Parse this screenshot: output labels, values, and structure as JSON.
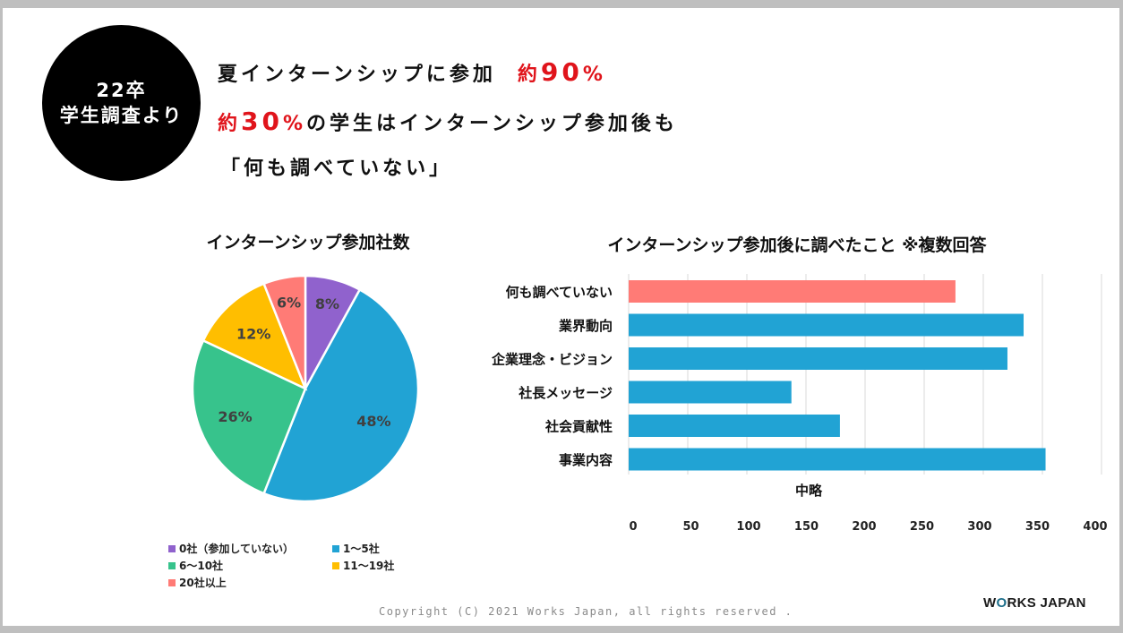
{
  "badge": {
    "line1": "22卒",
    "line2": "学生調査より"
  },
  "headline": {
    "line1_text": "夏インターンシップに参加",
    "line1_prefix": "約",
    "line1_value": "90",
    "line1_unit": "%",
    "line2_prefix": "約",
    "line2_value": "30",
    "line2_unit": "%",
    "line2_text": "の学生はインターンシップ参加後も",
    "line3_text": "「何も調べていない」"
  },
  "colors": {
    "accent_red": "#e0141b",
    "bar_blue": "#21a3d4",
    "bar_red": "#ff7b76"
  },
  "chart_data": [
    {
      "type": "pie",
      "title": "インターンシップ参加社数",
      "categories": [
        "0社（参加していない）",
        "1〜5社",
        "6〜10社",
        "11〜19社",
        "20社以上"
      ],
      "values": [
        8,
        48,
        26,
        12,
        6
      ],
      "labels": [
        "8%",
        "48%",
        "26%",
        "12%",
        "6%"
      ],
      "colors": [
        "#9062cd",
        "#21a3d4",
        "#37c38c",
        "#ffbe00",
        "#ff7b76"
      ],
      "legend_position": "bottom"
    },
    {
      "type": "bar",
      "orientation": "horizontal",
      "title": "インターンシップ参加後に調べたこと ※複数回答",
      "categories": [
        "何も調べていない",
        "業界動向",
        "企業理念・ビジョン",
        "社長メッセージ",
        "社会貢献性",
        "事業内容"
      ],
      "values": [
        279,
        338,
        324,
        137,
        179,
        357
      ],
      "colors": [
        "#ff7b76",
        "#21a3d4",
        "#21a3d4",
        "#21a3d4",
        "#21a3d4",
        "#21a3d4"
      ],
      "axis_break_label": "中略",
      "xticks": [
        "0",
        "50",
        "100",
        "150",
        "200",
        "250",
        "300",
        "350",
        "400"
      ],
      "xlim": [
        0,
        400
      ],
      "grid": true
    }
  ],
  "footer": {
    "copyright": "Copyright (C) 2021 Works Japan, all rights reserved .",
    "logo_pre": "W",
    "logo_o": "O",
    "logo_post": "RKS JAPAN"
  }
}
